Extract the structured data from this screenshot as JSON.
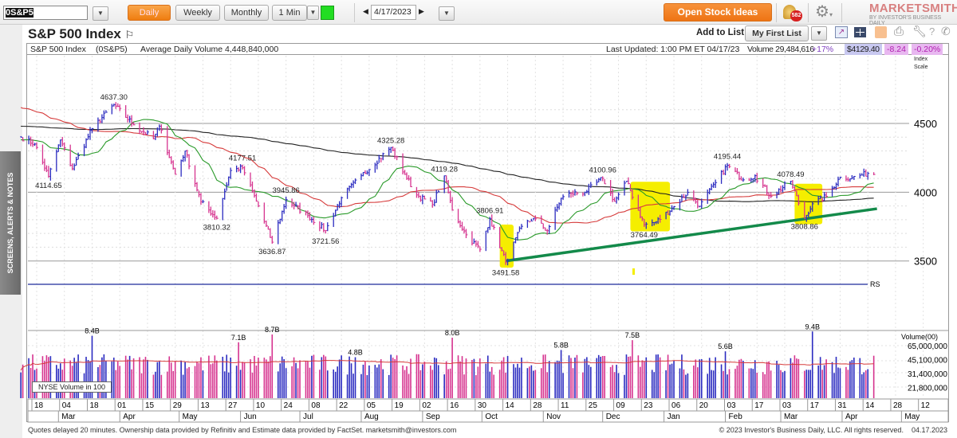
{
  "toolbar": {
    "symbol": "0S&P5",
    "periods": [
      "Daily",
      "Weekly",
      "Monthly"
    ],
    "active_period": "Daily",
    "interval": "1 Min",
    "date": "4/17/2023",
    "open_ideas": "Open Stock Ideas",
    "alerts_count": "582",
    "logo": "MARKETSMITH",
    "logo_sub": "BY INVESTOR'S BUSINESS DAILY"
  },
  "sidebar": {
    "tab": "SCREENS, ALERTS & NOTES"
  },
  "header": {
    "title": "S&P 500 Index",
    "add_to_list": "Add to List:",
    "list_name": "My First List"
  },
  "info": {
    "name": "S&P 500 Index",
    "symbol": "(0S&P5)",
    "avg_volume": "Average Daily Volume 4,448,840,000",
    "last_updated": "Last Updated: 1:00 PM ET 04/17/23",
    "volume": "Volume 29,484,616",
    "volume_pct": "+17%",
    "price": "$4129.40",
    "change": "-8.24",
    "change_pct": "-0.20%",
    "scale_label_1": "Index",
    "scale_label_2": "Scale"
  },
  "colors": {
    "up": "#2b2bc0",
    "down": "#d6338f",
    "ma50": "#d63a3a",
    "ma21": "#2a9a2a",
    "ma200": "#222222",
    "trendline": "#138a4a",
    "highlight": "#f5ee00",
    "rs": "#1d2a9a",
    "accent": "#ef7d10"
  },
  "chart_data": {
    "type": "ohlc",
    "price_axis": {
      "ticks": [
        3500,
        4000,
        4500
      ],
      "scale": "log-like index scale"
    },
    "price_path": [
      [
        "2022-02-10",
        4400
      ],
      [
        "2022-02-17",
        4350
      ],
      [
        "2022-02-24",
        4114.65
      ],
      [
        "2022-03-02",
        4380
      ],
      [
        "2022-03-08",
        4170
      ],
      [
        "2022-03-18",
        4463
      ],
      [
        "2022-03-29",
        4637.3
      ],
      [
        "2022-04-08",
        4490
      ],
      [
        "2022-04-18",
        4390
      ],
      [
        "2022-04-21",
        4480
      ],
      [
        "2022-04-29",
        4130
      ],
      [
        "2022-05-04",
        4300
      ],
      [
        "2022-05-12",
        3930
      ],
      [
        "2022-05-20",
        3810.32
      ],
      [
        "2022-05-27",
        4158
      ],
      [
        "2022-06-02",
        4177.51
      ],
      [
        "2022-06-10",
        3900
      ],
      [
        "2022-06-17",
        3636.87
      ],
      [
        "2022-06-24",
        3945.86
      ],
      [
        "2022-07-05",
        3830
      ],
      [
        "2022-07-14",
        3721.56
      ],
      [
        "2022-07-22",
        3960
      ],
      [
        "2022-08-01",
        4120
      ],
      [
        "2022-08-16",
        4325.28
      ],
      [
        "2022-08-23",
        4130
      ],
      [
        "2022-08-29",
        3980
      ],
      [
        "2022-09-06",
        3910
      ],
      [
        "2022-09-12",
        4119.28
      ],
      [
        "2022-09-16",
        3870
      ],
      [
        "2022-09-23",
        3690
      ],
      [
        "2022-09-30",
        3585
      ],
      [
        "2022-10-05",
        3806.91
      ],
      [
        "2022-10-13",
        3491.58
      ],
      [
        "2022-10-21",
        3752
      ],
      [
        "2022-10-27",
        3810
      ],
      [
        "2022-11-03",
        3720
      ],
      [
        "2022-11-10",
        3956
      ],
      [
        "2022-11-15",
        3991
      ],
      [
        "2022-11-22",
        4000
      ],
      [
        "2022-12-01",
        4100.96
      ],
      [
        "2022-12-07",
        3933
      ],
      [
        "2022-12-13",
        4080
      ],
      [
        "2022-12-22",
        3764.49
      ],
      [
        "2022-12-28",
        3783
      ],
      [
        "2023-01-06",
        3895
      ],
      [
        "2023-01-13",
        3999
      ],
      [
        "2023-01-19",
        3898
      ],
      [
        "2023-01-27",
        4070
      ],
      [
        "2023-02-02",
        4195.44
      ],
      [
        "2023-02-10",
        4090
      ],
      [
        "2023-02-16",
        4120
      ],
      [
        "2023-02-24",
        3970
      ],
      [
        "2023-03-06",
        4078.49
      ],
      [
        "2023-03-13",
        3808.86
      ],
      [
        "2023-03-17",
        3916
      ],
      [
        "2023-03-24",
        3970
      ],
      [
        "2023-03-31",
        4109
      ],
      [
        "2023-04-06",
        4105
      ],
      [
        "2023-04-14",
        4137
      ],
      [
        "2023-04-17",
        4129.4
      ]
    ],
    "price_labels": [
      {
        "date": "2022-02-24",
        "text": "4114.65",
        "pos": "below"
      },
      {
        "date": "2022-03-29",
        "text": "4637.30",
        "pos": "above"
      },
      {
        "date": "2022-05-20",
        "text": "3810.32",
        "pos": "below"
      },
      {
        "date": "2022-06-02",
        "text": "4177.51",
        "pos": "above"
      },
      {
        "date": "2022-06-17",
        "text": "3636.87",
        "pos": "below"
      },
      {
        "date": "2022-06-24",
        "text": "3945.86",
        "pos": "above"
      },
      {
        "date": "2022-07-14",
        "text": "3721.56",
        "pos": "below"
      },
      {
        "date": "2022-08-16",
        "text": "4325.28",
        "pos": "above"
      },
      {
        "date": "2022-09-12",
        "text": "4119.28",
        "pos": "above"
      },
      {
        "date": "2022-10-05",
        "text": "3806.91",
        "pos": "above"
      },
      {
        "date": "2022-10-13",
        "text": "3491.58",
        "pos": "below"
      },
      {
        "date": "2022-12-01",
        "text": "4100.96",
        "pos": "above"
      },
      {
        "date": "2022-12-22",
        "text": "3764.49",
        "pos": "below"
      },
      {
        "date": "2023-02-02",
        "text": "4195.44",
        "pos": "above"
      },
      {
        "date": "2023-03-06",
        "text": "4078.49",
        "pos": "above"
      },
      {
        "date": "2023-03-13",
        "text": "3808.86",
        "pos": "below"
      }
    ],
    "trendline": [
      [
        "2022-10-13",
        3500
      ],
      [
        "2023-04-17",
        3880
      ]
    ],
    "highlights": [
      [
        "2022-10-10",
        "2022-10-17"
      ],
      [
        "2022-12-15",
        "2023-01-04"
      ],
      [
        "2023-03-08",
        "2023-03-22"
      ]
    ],
    "rs_label": "RS",
    "volume": {
      "label": "Volume(00)",
      "ticks": [
        "65,000,000",
        "45,100,000",
        "31,400,000",
        "21,800,000"
      ],
      "tick_values": [
        65000000,
        45100000,
        31400000,
        21800000
      ],
      "legend": "NYSE Volume in 100",
      "spikes": [
        [
          "2022-03-18",
          "8.4B",
          84000000
        ],
        [
          "2022-05-31",
          "7.1B",
          71000000
        ],
        [
          "2022-06-17",
          "8.7B",
          87000000
        ],
        [
          "2022-07-29",
          "4.8B",
          48000000
        ],
        [
          "2022-09-16",
          "8.0B",
          80000000
        ],
        [
          "2022-11-10",
          "5.8B",
          58000000
        ],
        [
          "2022-12-16",
          "7.5B",
          75000000
        ],
        [
          "2023-02-01",
          "5.6B",
          56000000
        ],
        [
          "2023-03-17",
          "9.4B",
          94000000
        ]
      ]
    },
    "date_ticks": [
      "18",
      "04",
      "18",
      "01",
      "15",
      "29",
      "13",
      "27",
      "10",
      "24",
      "08",
      "22",
      "05",
      "19",
      "02",
      "16",
      "30",
      "14",
      "28",
      "11",
      "25",
      "09",
      "23",
      "06",
      "20",
      "03",
      "17",
      "03",
      "17",
      "31",
      "14",
      "28",
      "12"
    ],
    "months": [
      [
        "2022-03-01",
        "Mar"
      ],
      [
        "2022-04-01",
        "Apr"
      ],
      [
        "2022-05-01",
        "May"
      ],
      [
        "2022-06-01",
        "Jun"
      ],
      [
        "2022-07-01",
        "Jul"
      ],
      [
        "2022-08-01",
        "Aug"
      ],
      [
        "2022-09-01",
        "Sep"
      ],
      [
        "2022-10-01",
        "Oct"
      ],
      [
        "2022-11-01",
        "Nov"
      ],
      [
        "2022-12-01",
        "Dec"
      ],
      [
        "2023-01-01",
        "Jan"
      ],
      [
        "2023-02-01",
        "Feb"
      ],
      [
        "2023-03-01",
        "Mar"
      ],
      [
        "2023-04-01",
        "Apr"
      ],
      [
        "2023-05-01",
        "May"
      ]
    ]
  },
  "footer": {
    "left": "Quotes delayed 20 minutes. Ownership data provided by Refinitiv and Estimate data provided by FactSet. marketsmith@investors.com",
    "right": "© 2023 Investor's Business Daily, LLC. All rights reserved.    04.17.2023"
  }
}
